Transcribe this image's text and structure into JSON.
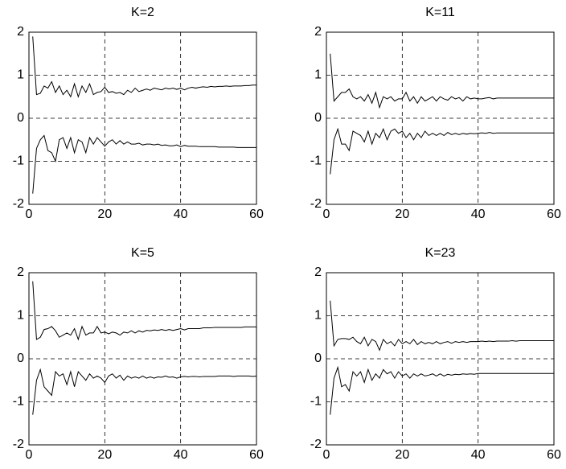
{
  "chart_data": [
    {
      "type": "line",
      "title": "K=2",
      "x": [
        1,
        2,
        3,
        4,
        5,
        6,
        7,
        8,
        9,
        10,
        11,
        12,
        13,
        14,
        15,
        16,
        17,
        18,
        19,
        20,
        21,
        22,
        23,
        24,
        25,
        26,
        27,
        28,
        29,
        30,
        31,
        32,
        33,
        34,
        35,
        36,
        37,
        38,
        39,
        40,
        41,
        42,
        43,
        44,
        45,
        46,
        47,
        48,
        49,
        50,
        51,
        52,
        53,
        54,
        55,
        56,
        57,
        58,
        59,
        60
      ],
      "series": [
        {
          "color": "#000000",
          "values": [
            1.9,
            0.55,
            0.58,
            0.75,
            0.7,
            0.85,
            0.6,
            0.75,
            0.55,
            0.65,
            0.5,
            0.8,
            0.5,
            0.75,
            0.6,
            0.8,
            0.55,
            0.6,
            0.62,
            0.72,
            0.6,
            0.62,
            0.58,
            0.6,
            0.55,
            0.65,
            0.6,
            0.7,
            0.62,
            0.65,
            0.68,
            0.65,
            0.7,
            0.68,
            0.66,
            0.7,
            0.68,
            0.7,
            0.67,
            0.7,
            0.66,
            0.7,
            0.72,
            0.7,
            0.72,
            0.73,
            0.72,
            0.74,
            0.73,
            0.74,
            0.74,
            0.75,
            0.74,
            0.75,
            0.75,
            0.75,
            0.76,
            0.76,
            0.77,
            0.77
          ]
        },
        {
          "color": "#000000",
          "values": [
            -1.75,
            -0.7,
            -0.5,
            -0.4,
            -0.75,
            -0.8,
            -1.0,
            -0.5,
            -0.45,
            -0.7,
            -0.45,
            -0.8,
            -0.5,
            -0.55,
            -0.8,
            -0.45,
            -0.6,
            -0.45,
            -0.55,
            -0.65,
            -0.55,
            -0.5,
            -0.6,
            -0.52,
            -0.6,
            -0.55,
            -0.6,
            -0.6,
            -0.58,
            -0.62,
            -0.6,
            -0.6,
            -0.62,
            -0.6,
            -0.63,
            -0.62,
            -0.64,
            -0.64,
            -0.62,
            -0.66,
            -0.63,
            -0.65,
            -0.65,
            -0.65,
            -0.66,
            -0.66,
            -0.66,
            -0.66,
            -0.66,
            -0.67,
            -0.67,
            -0.67,
            -0.67,
            -0.67,
            -0.68,
            -0.68,
            -0.68,
            -0.68,
            -0.68,
            -0.68
          ]
        }
      ],
      "xlim": [
        0,
        60
      ],
      "xticks": [
        0,
        20,
        40,
        60
      ],
      "ylim": [
        -2,
        2
      ],
      "yticks": [
        -2,
        -1,
        0,
        1,
        2
      ],
      "grid": true
    },
    {
      "type": "line",
      "title": "K=11",
      "x": [
        1,
        2,
        3,
        4,
        5,
        6,
        7,
        8,
        9,
        10,
        11,
        12,
        13,
        14,
        15,
        16,
        17,
        18,
        19,
        20,
        21,
        22,
        23,
        24,
        25,
        26,
        27,
        28,
        29,
        30,
        31,
        32,
        33,
        34,
        35,
        36,
        37,
        38,
        39,
        40,
        41,
        42,
        43,
        44,
        45,
        46,
        47,
        48,
        49,
        50,
        51,
        52,
        53,
        54,
        55,
        56,
        57,
        58,
        59,
        60
      ],
      "series": [
        {
          "color": "#000000",
          "values": [
            1.5,
            0.4,
            0.5,
            0.6,
            0.6,
            0.68,
            0.5,
            0.45,
            0.5,
            0.4,
            0.55,
            0.35,
            0.6,
            0.25,
            0.5,
            0.45,
            0.5,
            0.4,
            0.45,
            0.45,
            0.6,
            0.4,
            0.5,
            0.35,
            0.5,
            0.4,
            0.45,
            0.5,
            0.4,
            0.5,
            0.45,
            0.42,
            0.5,
            0.45,
            0.48,
            0.4,
            0.5,
            0.45,
            0.47,
            0.45,
            0.45,
            0.47,
            0.48,
            0.45,
            0.47,
            0.47,
            0.47,
            0.47,
            0.47,
            0.47,
            0.47,
            0.47,
            0.47,
            0.47,
            0.47,
            0.47,
            0.47,
            0.47,
            0.47,
            0.47
          ]
        },
        {
          "color": "#000000",
          "values": [
            -1.3,
            -0.5,
            -0.25,
            -0.6,
            -0.6,
            -0.75,
            -0.3,
            -0.35,
            -0.4,
            -0.55,
            -0.3,
            -0.6,
            -0.35,
            -0.45,
            -0.25,
            -0.5,
            -0.3,
            -0.25,
            -0.35,
            -0.3,
            -0.45,
            -0.35,
            -0.5,
            -0.35,
            -0.45,
            -0.3,
            -0.4,
            -0.35,
            -0.4,
            -0.35,
            -0.4,
            -0.33,
            -0.38,
            -0.35,
            -0.38,
            -0.35,
            -0.37,
            -0.35,
            -0.36,
            -0.35,
            -0.34,
            -0.35,
            -0.33,
            -0.35,
            -0.34,
            -0.34,
            -0.34,
            -0.34,
            -0.34,
            -0.34,
            -0.34,
            -0.34,
            -0.34,
            -0.34,
            -0.34,
            -0.34,
            -0.34,
            -0.34,
            -0.34,
            -0.34
          ]
        }
      ],
      "xlim": [
        0,
        60
      ],
      "xticks": [
        0,
        20,
        40,
        60
      ],
      "ylim": [
        -2,
        2
      ],
      "yticks": [
        -2,
        -1,
        0,
        1,
        2
      ],
      "grid": true
    },
    {
      "type": "line",
      "title": "K=5",
      "x": [
        1,
        2,
        3,
        4,
        5,
        6,
        7,
        8,
        9,
        10,
        11,
        12,
        13,
        14,
        15,
        16,
        17,
        18,
        19,
        20,
        21,
        22,
        23,
        24,
        25,
        26,
        27,
        28,
        29,
        30,
        31,
        32,
        33,
        34,
        35,
        36,
        37,
        38,
        39,
        40,
        41,
        42,
        43,
        44,
        45,
        46,
        47,
        48,
        49,
        50,
        51,
        52,
        53,
        54,
        55,
        56,
        57,
        58,
        59,
        60
      ],
      "series": [
        {
          "color": "#000000",
          "values": [
            1.8,
            0.45,
            0.5,
            0.68,
            0.7,
            0.75,
            0.65,
            0.5,
            0.55,
            0.6,
            0.55,
            0.7,
            0.45,
            0.75,
            0.55,
            0.6,
            0.6,
            0.75,
            0.6,
            0.62,
            0.58,
            0.62,
            0.6,
            0.55,
            0.62,
            0.6,
            0.65,
            0.6,
            0.65,
            0.62,
            0.66,
            0.65,
            0.67,
            0.66,
            0.68,
            0.66,
            0.68,
            0.66,
            0.68,
            0.7,
            0.67,
            0.7,
            0.7,
            0.7,
            0.7,
            0.72,
            0.72,
            0.72,
            0.73,
            0.73,
            0.73,
            0.73,
            0.73,
            0.73,
            0.73,
            0.73,
            0.74,
            0.74,
            0.74,
            0.74
          ]
        },
        {
          "color": "#000000",
          "values": [
            -1.3,
            -0.5,
            -0.25,
            -0.65,
            -0.75,
            -0.85,
            -0.3,
            -0.4,
            -0.35,
            -0.6,
            -0.3,
            -0.65,
            -0.3,
            -0.4,
            -0.5,
            -0.35,
            -0.45,
            -0.4,
            -0.45,
            -0.55,
            -0.4,
            -0.35,
            -0.45,
            -0.38,
            -0.5,
            -0.4,
            -0.45,
            -0.42,
            -0.45,
            -0.4,
            -0.45,
            -0.42,
            -0.45,
            -0.42,
            -0.43,
            -0.4,
            -0.43,
            -0.42,
            -0.45,
            -0.42,
            -0.41,
            -0.42,
            -0.41,
            -0.41,
            -0.42,
            -0.41,
            -0.41,
            -0.41,
            -0.41,
            -0.4,
            -0.4,
            -0.4,
            -0.4,
            -0.41,
            -0.4,
            -0.4,
            -0.4,
            -0.4,
            -0.41,
            -0.4
          ]
        }
      ],
      "xlim": [
        0,
        60
      ],
      "xticks": [
        0,
        20,
        40,
        60
      ],
      "ylim": [
        -2,
        2
      ],
      "yticks": [
        -2,
        -1,
        0,
        1,
        2
      ],
      "grid": true
    },
    {
      "type": "line",
      "title": "K=23",
      "x": [
        1,
        2,
        3,
        4,
        5,
        6,
        7,
        8,
        9,
        10,
        11,
        12,
        13,
        14,
        15,
        16,
        17,
        18,
        19,
        20,
        21,
        22,
        23,
        24,
        25,
        26,
        27,
        28,
        29,
        30,
        31,
        32,
        33,
        34,
        35,
        36,
        37,
        38,
        39,
        40,
        41,
        42,
        43,
        44,
        45,
        46,
        47,
        48,
        49,
        50,
        51,
        52,
        53,
        54,
        55,
        56,
        57,
        58,
        59,
        60
      ],
      "series": [
        {
          "color": "#000000",
          "values": [
            1.35,
            0.3,
            0.45,
            0.47,
            0.47,
            0.45,
            0.5,
            0.4,
            0.35,
            0.5,
            0.3,
            0.45,
            0.4,
            0.2,
            0.45,
            0.35,
            0.4,
            0.3,
            0.45,
            0.35,
            0.4,
            0.35,
            0.45,
            0.33,
            0.4,
            0.35,
            0.38,
            0.35,
            0.4,
            0.35,
            0.38,
            0.4,
            0.36,
            0.4,
            0.38,
            0.4,
            0.38,
            0.4,
            0.4,
            0.4,
            0.41,
            0.4,
            0.41,
            0.4,
            0.41,
            0.41,
            0.41,
            0.41,
            0.42,
            0.41,
            0.42,
            0.42,
            0.42,
            0.42,
            0.42,
            0.42,
            0.42,
            0.42,
            0.42,
            0.42
          ]
        },
        {
          "color": "#000000",
          "values": [
            -1.3,
            -0.45,
            -0.2,
            -0.65,
            -0.6,
            -0.75,
            -0.3,
            -0.4,
            -0.3,
            -0.55,
            -0.25,
            -0.5,
            -0.35,
            -0.45,
            -0.25,
            -0.35,
            -0.3,
            -0.45,
            -0.3,
            -0.4,
            -0.35,
            -0.45,
            -0.35,
            -0.4,
            -0.35,
            -0.4,
            -0.38,
            -0.35,
            -0.4,
            -0.35,
            -0.4,
            -0.36,
            -0.38,
            -0.36,
            -0.37,
            -0.35,
            -0.36,
            -0.35,
            -0.36,
            -0.34,
            -0.34,
            -0.34,
            -0.34,
            -0.34,
            -0.34,
            -0.34,
            -0.34,
            -0.34,
            -0.34,
            -0.34,
            -0.34,
            -0.34,
            -0.34,
            -0.34,
            -0.34,
            -0.34,
            -0.34,
            -0.34,
            -0.34,
            -0.34
          ]
        }
      ],
      "xlim": [
        0,
        60
      ],
      "xticks": [
        0,
        20,
        40,
        60
      ],
      "ylim": [
        -2,
        2
      ],
      "yticks": [
        -2,
        -1,
        0,
        1,
        2
      ],
      "grid": true
    }
  ]
}
